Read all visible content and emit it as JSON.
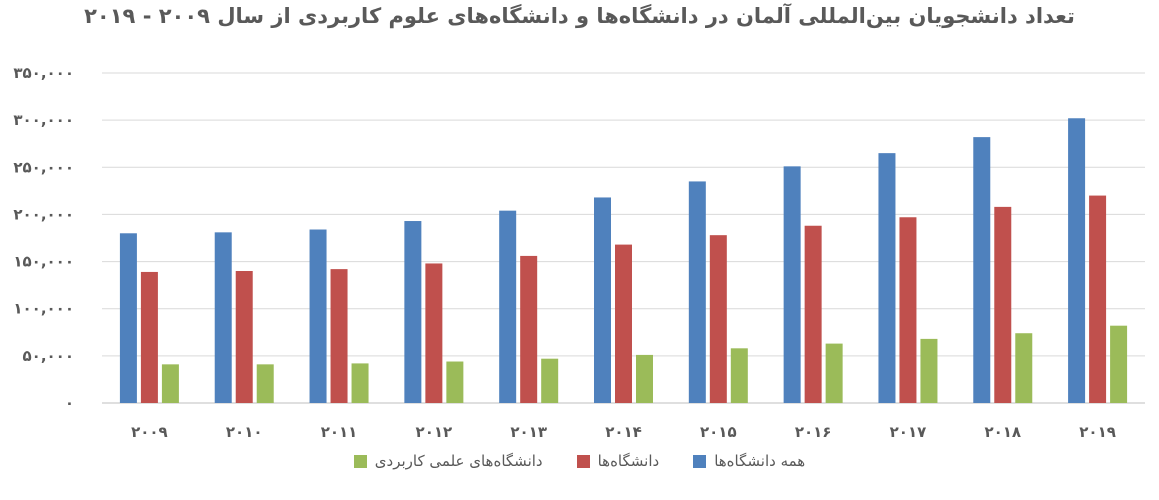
{
  "chart_data": {
    "type": "bar",
    "title": "تعداد دانشجویان بین‌المللی آلمان در دانشگاه‌ها و دانشگاه‌های علوم کاربردی از سال ۲۰۰۹ - ۲۰۱۹",
    "categories": [
      "۲۰۰۹",
      "۲۰۱۰",
      "۲۰۱۱",
      "۲۰۱۲",
      "۲۰۱۳",
      "۲۰۱۴",
      "۲۰۱۵",
      "۲۰۱۶",
      "۲۰۱۷",
      "۲۰۱۸",
      "۲۰۱۹"
    ],
    "series": [
      {
        "name": "همه دانشگاه‌ها",
        "color": "#4f81bd",
        "values": [
          180000,
          181000,
          184000,
          193000,
          204000,
          218000,
          235000,
          251000,
          265000,
          282000,
          302000
        ]
      },
      {
        "name": "دانشگاه‌ها",
        "color": "#c0504d",
        "values": [
          139000,
          140000,
          142000,
          148000,
          156000,
          168000,
          178000,
          188000,
          197000,
          208000,
          220000
        ]
      },
      {
        "name": "دانشگاه‌های علمی کاربردی",
        "color": "#9bbb59",
        "values": [
          41000,
          41000,
          42000,
          44000,
          47000,
          51000,
          58000,
          63000,
          68000,
          74000,
          82000
        ]
      }
    ],
    "yticks": [
      "۰",
      "۵۰,۰۰۰",
      "۱۰۰,۰۰۰",
      "۱۵۰,۰۰۰",
      "۲۰۰,۰۰۰",
      "۲۵۰,۰۰۰",
      "۳۰۰,۰۰۰",
      "۳۵۰,۰۰۰"
    ],
    "ylim": [
      0,
      350000
    ],
    "grid": true,
    "legend_position": "bottom"
  }
}
